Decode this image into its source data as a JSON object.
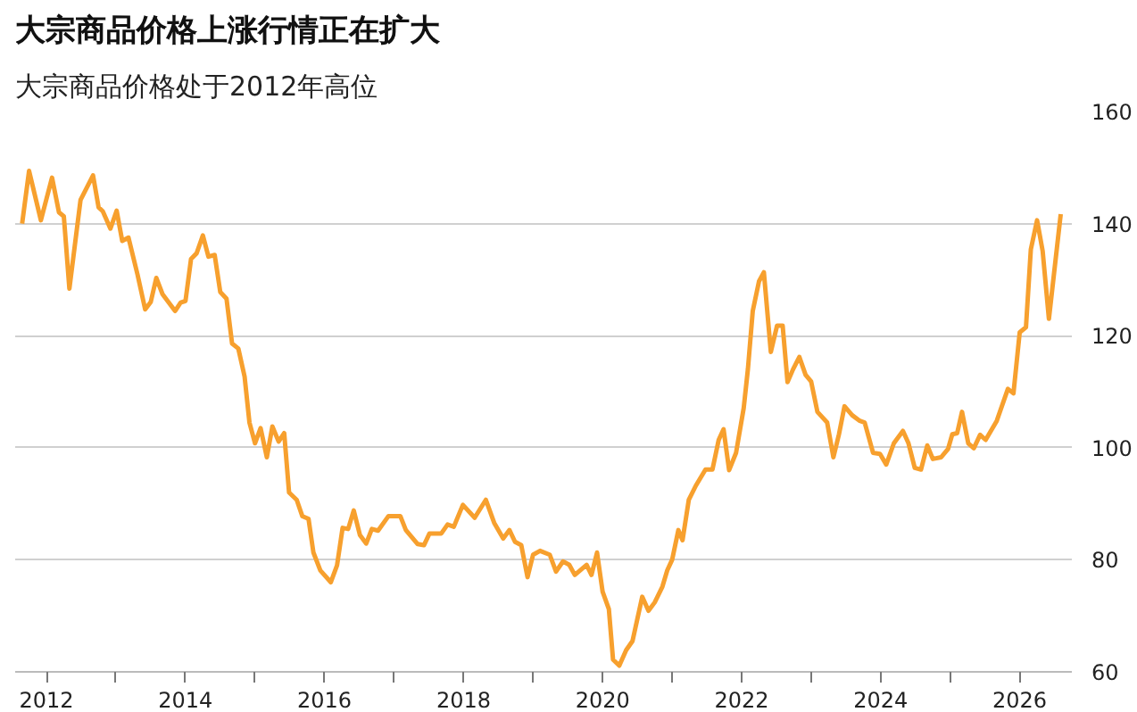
{
  "chart_data": {
    "type": "line",
    "title": "大宗商品价格上涨行情正在扩大",
    "subtitle": "大宗商品价格处于2012年高位",
    "x": [
      2011.65,
      2011.75,
      2011.92,
      2012.08,
      2012.18,
      2012.25,
      2012.33,
      2012.49,
      2012.67,
      2012.75,
      2012.81,
      2012.92,
      2013.01,
      2013.09,
      2013.18,
      2013.31,
      2013.42,
      2013.5,
      2013.58,
      2013.67,
      2013.85,
      2013.93,
      2014.0,
      2014.08,
      2014.16,
      2014.25,
      2014.33,
      2014.42,
      2014.5,
      2014.59,
      2014.67,
      2014.76,
      2014.85,
      2014.92,
      2015.0,
      2015.08,
      2015.17,
      2015.25,
      2015.34,
      2015.42,
      2015.49,
      2015.6,
      2015.68,
      2015.77,
      2015.84,
      2015.94,
      2016.09,
      2016.18,
      2016.26,
      2016.34,
      2016.42,
      2016.51,
      2016.6,
      2016.68,
      2016.77,
      2016.92,
      2017.09,
      2017.17,
      2017.34,
      2017.43,
      2017.51,
      2017.68,
      2017.77,
      2017.86,
      2017.99,
      2018.16,
      2018.32,
      2018.44,
      2018.57,
      2018.66,
      2018.74,
      2018.83,
      2018.92,
      2019.0,
      2019.1,
      2019.24,
      2019.33,
      2019.43,
      2019.52,
      2019.6,
      2019.77,
      2019.84,
      2019.92,
      2020.0,
      2020.09,
      2020.15,
      2020.24,
      2020.34,
      2020.43,
      2020.57,
      2020.66,
      2020.75,
      2020.86,
      2020.93,
      2021.0,
      2021.09,
      2021.15,
      2021.24,
      2021.34,
      2021.48,
      2021.58,
      2021.67,
      2021.74,
      2021.82,
      2021.92,
      2022.03,
      2022.09,
      2022.16,
      2022.25,
      2022.32,
      2022.42,
      2022.51,
      2022.59,
      2022.66,
      2022.74,
      2022.83,
      2022.92,
      2023.0,
      2023.09,
      2023.23,
      2023.32,
      2023.4,
      2023.48,
      2023.59,
      2023.7,
      2023.77,
      2023.89,
      2023.99,
      2024.08,
      2024.19,
      2024.32,
      2024.4,
      2024.49,
      2024.58,
      2024.67,
      2024.75,
      2024.87,
      2024.97,
      2025.03,
      2025.1,
      2025.17,
      2025.26,
      2025.34,
      2025.43,
      2025.51,
      2025.67,
      2025.83,
      2025.91,
      2026.0,
      2026.09,
      2026.16,
      2026.25,
      2026.33,
      2026.42,
      2026.59
    ],
    "series": [
      {
        "color": "#f7a02e",
        "values": [
          140,
          149.4,
          140.6,
          148.2,
          142,
          141.3,
          128.4,
          144.2,
          148.6,
          142.9,
          142.2,
          139.1,
          142.3,
          136.9,
          137.5,
          130.9,
          124.7,
          126,
          130.3,
          127.4,
          124.4,
          125.9,
          126.2,
          133.7,
          134.7,
          137.9,
          134.1,
          134.4,
          127.8,
          126.6,
          118.6,
          117.7,
          112.7,
          104.5,
          100.8,
          103.5,
          98.3,
          103.8,
          101.1,
          102.6,
          92,
          90.7,
          87.8,
          87.3,
          81.3,
          78.1,
          76,
          79,
          85.7,
          85.5,
          88.8,
          84.4,
          82.9,
          85.5,
          85.2,
          87.8,
          87.8,
          85.3,
          82.8,
          82.6,
          84.7,
          84.7,
          86.3,
          85.9,
          89.8,
          87.5,
          90.7,
          86.6,
          83.8,
          85.3,
          83.2,
          82.6,
          76.9,
          80.9,
          81.6,
          80.9,
          77.9,
          79.7,
          79.1,
          77.3,
          79.1,
          77.3,
          81.3,
          74.3,
          71.2,
          62.2,
          61.1,
          63.9,
          65.5,
          73.4,
          70.9,
          72.4,
          75.2,
          78.1,
          80,
          85.3,
          83.5,
          90.7,
          93.2,
          96.1,
          96.1,
          101.4,
          103.3,
          96,
          99.1,
          107.1,
          114,
          124.4,
          129.7,
          131.3,
          117.1,
          121.8,
          121.8,
          111.7,
          114,
          116.2,
          113,
          111.8,
          106.4,
          104.5,
          98.3,
          102.4,
          107.4,
          105.8,
          104.8,
          104.5,
          99.1,
          98.9,
          97,
          100.8,
          103,
          100.8,
          96.4,
          96.1,
          100.4,
          98,
          98.3,
          99.8,
          102.4,
          102.6,
          106.4,
          100.8,
          99.9,
          102.3,
          101.4,
          104.8,
          110.5,
          109.7,
          120.6,
          121.5,
          135.4,
          140.6,
          135.1,
          123,
          141.7
        ]
      }
    ],
    "xlim": [
      2011.55,
      2026.75
    ],
    "xticks": [
      2012,
      {
        "value": 2013,
        "label": null
      },
      2014,
      {
        "value": 2015,
        "label": null
      },
      2016,
      {
        "value": 2017,
        "label": null
      },
      2018,
      {
        "value": 2019,
        "label": null
      },
      2020,
      {
        "value": 2021,
        "label": null
      },
      2022,
      {
        "value": 2023,
        "label": null
      },
      2024,
      {
        "value": 2025,
        "label": null
      },
      2026
    ],
    "ylim": [
      60,
      160
    ],
    "yticks": [
      60,
      80,
      100,
      120,
      140,
      160
    ],
    "grid": "y",
    "line_style": "solid"
  }
}
